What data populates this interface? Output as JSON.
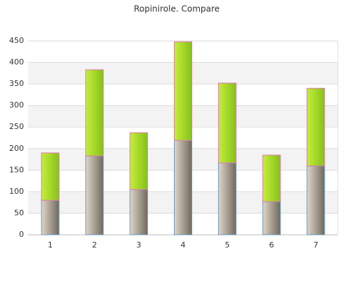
{
  "chart_data": {
    "type": "stacked_bar",
    "title": "Ropinirole. Compare",
    "categories": [
      "1",
      "2",
      "3",
      "4",
      "5",
      "6",
      "7"
    ],
    "series": [
      {
        "colors": [
          "#e0d6c8",
          "#6f695d"
        ],
        "stroke": "#6a9ac4",
        "values": [
          80,
          183,
          105,
          219,
          167,
          77,
          160
        ]
      },
      {
        "colors": [
          "#c4ee3a",
          "#86c11a"
        ],
        "stroke": "#e07ab0",
        "values": [
          110,
          200,
          132,
          229,
          185,
          108,
          180
        ]
      }
    ],
    "ylim": [
      0,
      450
    ],
    "yticks": [
      0,
      50,
      100,
      150,
      200,
      250,
      300,
      350,
      400,
      450
    ],
    "grid": true,
    "bands": true
  }
}
